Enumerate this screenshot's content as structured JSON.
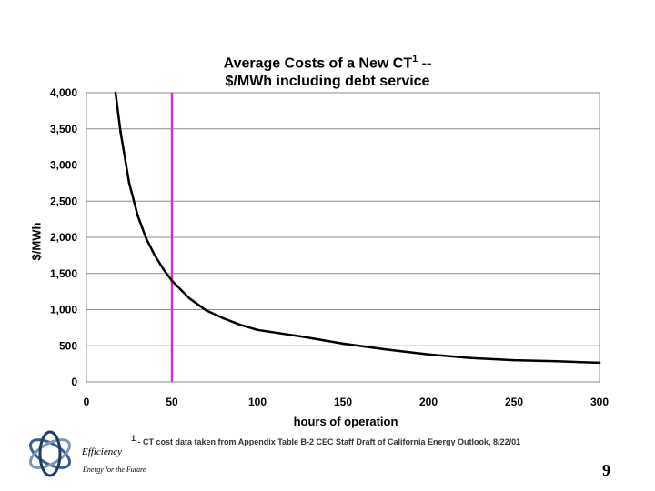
{
  "chart_data": {
    "type": "line",
    "title_line1": "Average Costs of a New CT",
    "title_sup": "1",
    "title_suffix": " --",
    "title_line2": "$/MWh including debt service",
    "xlabel": "hours of operation",
    "ylabel": "$/MWh",
    "xlim": [
      0,
      300
    ],
    "ylim": [
      0,
      4000
    ],
    "x_ticks": [
      "0",
      "50",
      "100",
      "150",
      "200",
      "250",
      "300"
    ],
    "y_ticks": [
      "0",
      "500",
      "1,000",
      "1,500",
      "2,000",
      "2,500",
      "3,000",
      "3,500",
      "4,000"
    ],
    "grid": "horizontal",
    "series": [
      {
        "name": "Average cost",
        "color": "#000000",
        "x": [
          17,
          20,
          25,
          30,
          35,
          40,
          45,
          50,
          60,
          70,
          80,
          90,
          100,
          125,
          150,
          175,
          200,
          225,
          250,
          275,
          300
        ],
        "y": [
          4000,
          3450,
          2750,
          2300,
          1980,
          1750,
          1560,
          1400,
          1160,
          990,
          880,
          790,
          720,
          630,
          530,
          450,
          380,
          330,
          300,
          285,
          265
        ]
      }
    ],
    "marker_line": {
      "x": 50,
      "color": "#cc33cc"
    }
  },
  "footnote": {
    "sup": "1",
    "text": " - CT cost data taken from Appendix Table B-2 CEC Staff Draft of California Energy Outlook, 8/22/01"
  },
  "branding": {
    "company": "Efficiency",
    "tagline": "Energy for the Future"
  },
  "page_number": "9"
}
